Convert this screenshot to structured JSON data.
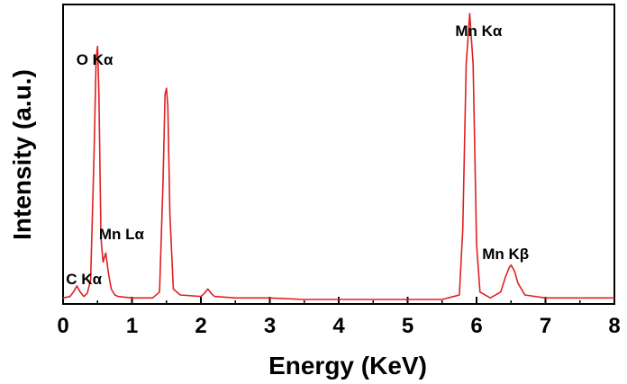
{
  "chart_data": {
    "type": "line",
    "xlabel": "Energy (KeV)",
    "ylabel": "Intensity (a.u.)",
    "xlim": [
      0,
      8
    ],
    "ylim": [
      0,
      100
    ],
    "x_ticks": [
      0,
      1,
      2,
      3,
      4,
      5,
      6,
      7,
      8
    ],
    "x_tick_labels": [
      "0",
      "1",
      "2",
      "3",
      "4",
      "5",
      "6",
      "7",
      "8"
    ],
    "y_tick_labels_shown": false,
    "grid": false,
    "line_color": "#e02020",
    "series": [
      {
        "x": [
          0.0,
          0.1,
          0.15,
          0.2,
          0.25,
          0.3,
          0.35,
          0.4,
          0.45,
          0.48,
          0.5,
          0.52,
          0.55,
          0.58,
          0.62,
          0.66,
          0.7,
          0.75,
          0.8,
          1.0,
          1.3,
          1.4,
          1.45,
          1.48,
          1.5,
          1.52,
          1.55,
          1.6,
          1.7,
          2.0,
          2.05,
          2.1,
          2.15,
          2.2,
          2.5,
          3.0,
          3.5,
          4.0,
          4.5,
          5.0,
          5.5,
          5.75,
          5.8,
          5.85,
          5.9,
          5.95,
          6.0,
          6.05,
          6.2,
          6.35,
          6.42,
          6.47,
          6.5,
          6.55,
          6.6,
          6.7,
          7.0,
          7.5,
          8.0
        ],
        "y": [
          2,
          2.5,
          4,
          6,
          4,
          2.5,
          3.5,
          8,
          50,
          82,
          86,
          70,
          22,
          14,
          17,
          10,
          5,
          3,
          2.5,
          2,
          2,
          4,
          40,
          70,
          72,
          66,
          30,
          5,
          3,
          2.5,
          3.5,
          5,
          3.5,
          2.5,
          2,
          2,
          1.5,
          1.5,
          1.5,
          1.5,
          1.5,
          3,
          25,
          80,
          97,
          80,
          20,
          4,
          2,
          4,
          9,
          12,
          13,
          11,
          7,
          3,
          2,
          2,
          2
        ]
      }
    ],
    "annotations": [
      {
        "text": "C Kα",
        "x": 0.2
      },
      {
        "text": "O Kα",
        "x": 0.48
      },
      {
        "text": "Mn Lα",
        "x": 0.6
      },
      {
        "text": "Mn Kα",
        "x": 5.9
      },
      {
        "text": "Mn Kβ",
        "x": 6.5
      }
    ]
  }
}
